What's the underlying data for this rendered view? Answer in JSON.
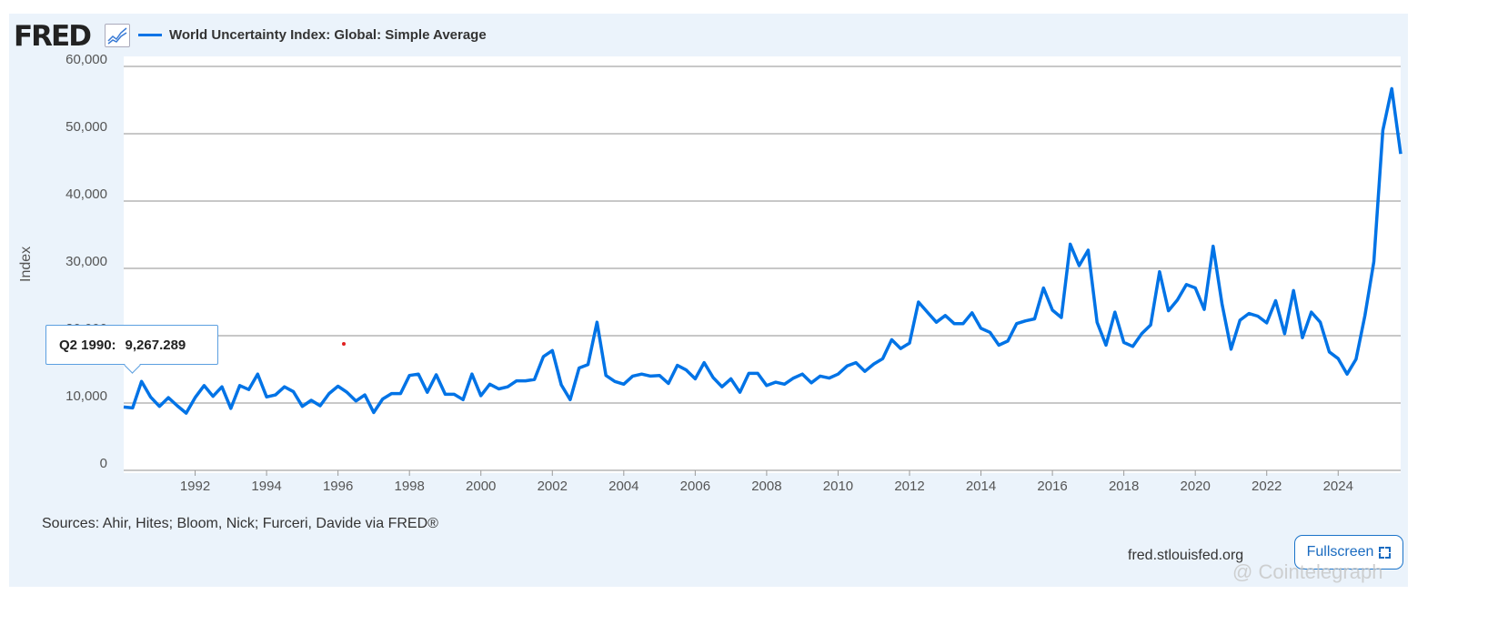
{
  "header": {
    "logo": "FRED",
    "logo_icon": "line-chart-icon"
  },
  "footer": {
    "sources": "Sources: Ahir, Hites; Bloom, Nick; Furceri, Davide via FRED®",
    "site": "fred.stlouisfed.org",
    "fullscreen_label": "Fullscreen",
    "fullscreen_icon": "expand-icon",
    "watermark": "@ Cointelegraph"
  },
  "tooltip": {
    "label": "Q2 1990:",
    "value": "9,267.289"
  },
  "colors": {
    "series": "#0073e6",
    "background": "#ebf3fb",
    "grid": "#c8c8c8"
  },
  "chart_data": {
    "type": "line",
    "title": "",
    "ylabel": "Index",
    "xlabel": "",
    "ylim": [
      0,
      60000
    ],
    "yticks": [
      0,
      10000,
      20000,
      30000,
      40000,
      50000,
      60000
    ],
    "ytick_labels": [
      "0",
      "10,000",
      "20,000",
      "30,000",
      "40,000",
      "50,000",
      "60,000"
    ],
    "xticks": [
      "1992",
      "1994",
      "1996",
      "1998",
      "2000",
      "2002",
      "2004",
      "2006",
      "2008",
      "2010",
      "2012",
      "2014",
      "2016",
      "2018",
      "2020",
      "2022",
      "2024"
    ],
    "grid": true,
    "legend": "top-left",
    "frequency": "quarterly",
    "start": "1990 Q1",
    "series": [
      {
        "name": "World Uncertainty Index: Global: Simple Average",
        "values": [
          9400,
          9267,
          13200,
          10900,
          9500,
          10800,
          9600,
          8500,
          10800,
          12600,
          11000,
          12400,
          9200,
          12600,
          12000,
          14300,
          10900,
          11200,
          12400,
          11700,
          9500,
          10400,
          9600,
          11400,
          12500,
          11600,
          10300,
          11200,
          8600,
          10600,
          11400,
          11400,
          14100,
          14300,
          11600,
          14200,
          11300,
          11300,
          10500,
          14300,
          11100,
          12800,
          12100,
          12400,
          13300,
          13300,
          13500,
          16900,
          17800,
          12700,
          10500,
          15200,
          15700,
          22000,
          14100,
          13200,
          12800,
          14000,
          14300,
          14000,
          14100,
          12900,
          15600,
          14900,
          13600,
          16000,
          13800,
          12400,
          13600,
          11600,
          14400,
          14400,
          12600,
          13100,
          12800,
          13700,
          14300,
          13000,
          14000,
          13700,
          14300,
          15500,
          16000,
          14700,
          15800,
          16600,
          19400,
          18100,
          18900,
          25000,
          23500,
          22000,
          23000,
          21800,
          21800,
          23400,
          21100,
          20500,
          18600,
          19200,
          21800,
          22200,
          22500,
          27100,
          23800,
          22700,
          33600,
          30400,
          32700,
          22000,
          18600,
          23500,
          19000,
          18400,
          20300,
          21600,
          29500,
          23700,
          25300,
          27600,
          27100,
          23900,
          33300,
          24700,
          18000,
          22300,
          23300,
          22900,
          21900,
          25200,
          20300,
          26700,
          19700,
          23500,
          22000,
          17600,
          16600,
          14300,
          16500,
          23000,
          31000,
          50500,
          56700,
          47000
        ]
      }
    ]
  }
}
